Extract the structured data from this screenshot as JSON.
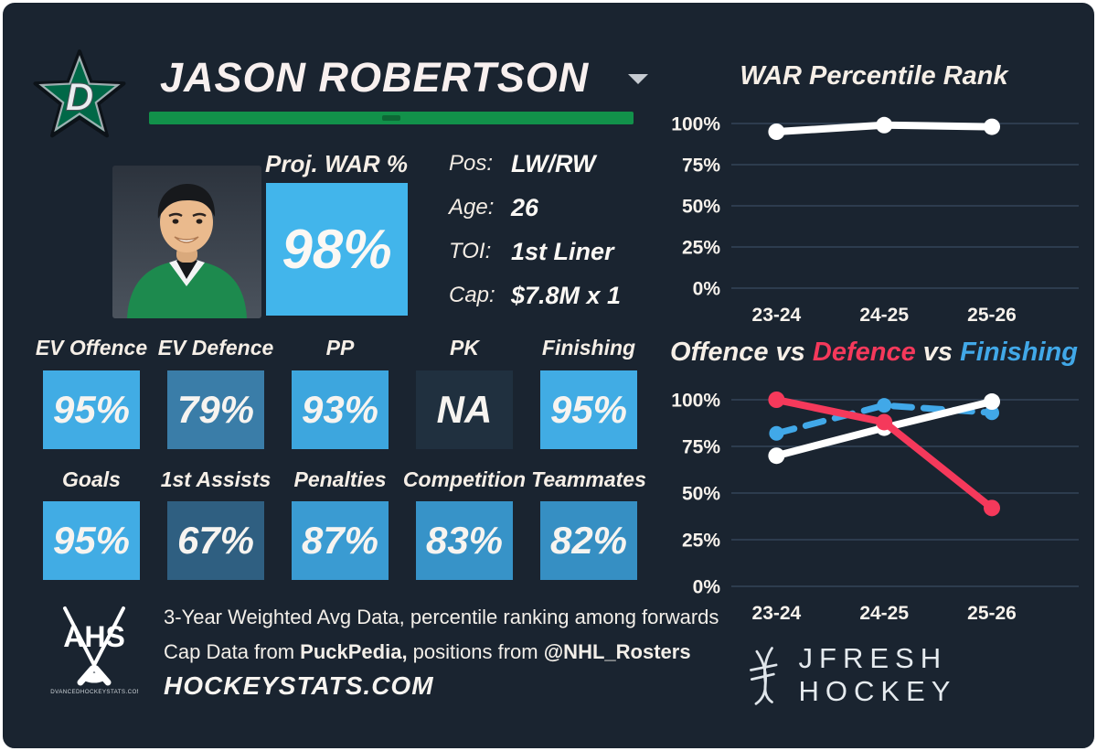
{
  "card": {
    "team": "Dallas Stars",
    "player_name": "JASON ROBERTSON",
    "accent_green": "#12914a",
    "proj_war": {
      "label": "Proj. WAR %",
      "value": "98%",
      "bg": "#42b5eb"
    },
    "info": [
      {
        "label": "Pos:",
        "value": "LW/RW"
      },
      {
        "label": "Age:",
        "value": "26"
      },
      {
        "label": "TOI:",
        "value": "1st Liner"
      },
      {
        "label": "Cap:",
        "value": "$7.8M x 1"
      }
    ],
    "stats_row1": [
      {
        "label": "EV Offence",
        "value": "95%",
        "bg": "#41ace4"
      },
      {
        "label": "EV Defence",
        "value": "79%",
        "bg": "#3a7da8"
      },
      {
        "label": "PP",
        "value": "93%",
        "bg": "#3da6de"
      },
      {
        "label": "PK",
        "value": "NA",
        "bg": "#20303f"
      },
      {
        "label": "Finishing",
        "value": "95%",
        "bg": "#41ace4"
      }
    ],
    "stats_row2": [
      {
        "label": "Goals",
        "value": "95%",
        "bg": "#41ace4"
      },
      {
        "label": "1st Assists",
        "value": "67%",
        "bg": "#2f5f81"
      },
      {
        "label": "Penalties",
        "value": "87%",
        "bg": "#3a9bd2"
      },
      {
        "label": "Competition",
        "value": "83%",
        "bg": "#3793c8"
      },
      {
        "label": "Teammates",
        "value": "82%",
        "bg": "#368fc3"
      }
    ],
    "footer": {
      "ahs_text": "AHS",
      "ahs_caption": "ADVANCEDHOCKEYSTATS.COM",
      "line1": "3-Year Weighted Avg Data, percentile ranking among forwards",
      "line2_parts": [
        {
          "text": "Cap Data from ",
          "bold": false
        },
        {
          "text": "PuckPedia,",
          "bold": true
        },
        {
          "text": " positions from ",
          "bold": false
        },
        {
          "text": "@NHL_Rosters",
          "bold": true
        }
      ],
      "line3": "HOCKEYSTATS.COM",
      "jfresh_label": "JFRESH HOCKEY"
    }
  },
  "chart_data": [
    {
      "type": "line",
      "title": "WAR Percentile Rank",
      "categories": [
        "23-24",
        "24-25",
        "25-26"
      ],
      "ylabels": [
        "100%",
        "75%",
        "50%",
        "25%",
        "0%"
      ],
      "ylim": [
        0,
        100
      ],
      "grid": true,
      "legend": "none",
      "series": [
        {
          "name": "WAR Percentile",
          "color": "#ffffff",
          "dashed": false,
          "zorder": 1,
          "values": [
            95,
            99,
            98
          ]
        }
      ],
      "layout": {
        "top": 30,
        "gap": 45
      }
    },
    {
      "type": "line",
      "title_parts": [
        {
          "text": "Offence",
          "color": "#f6efe7"
        },
        {
          "text": " vs ",
          "color": "#f6efe7"
        },
        {
          "text": "Defence",
          "color": "#f5395b"
        },
        {
          "text": " vs ",
          "color": "#f6efe7"
        },
        {
          "text": "Finishing",
          "color": "#41a8e8"
        }
      ],
      "categories": [
        "23-24",
        "24-25",
        "25-26"
      ],
      "ylabels": [
        "100%",
        "75%",
        "50%",
        "25%",
        "0%"
      ],
      "ylim": [
        0,
        100
      ],
      "grid": true,
      "legend": "in-title",
      "series": [
        {
          "name": "Offence",
          "color": "#ffffff",
          "dashed": false,
          "zorder": 2,
          "values": [
            70,
            85,
            99
          ]
        },
        {
          "name": "Defence",
          "color": "#f5395b",
          "dashed": false,
          "zorder": 3,
          "values": [
            100,
            88,
            42
          ]
        },
        {
          "name": "Finishing",
          "color": "#41a8e8",
          "dashed": true,
          "zorder": 1,
          "values": [
            82,
            97,
            93
          ]
        }
      ],
      "layout": {
        "top": 30,
        "gap": 51
      }
    }
  ]
}
